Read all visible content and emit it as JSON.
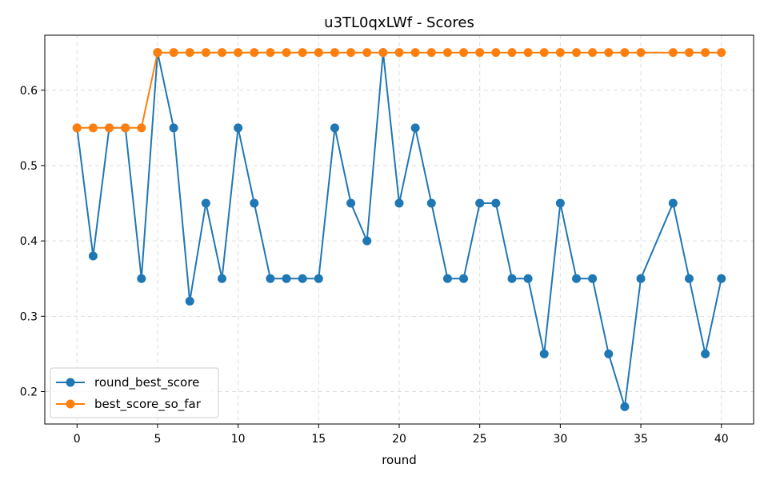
{
  "chart_data": {
    "type": "line",
    "title": "u3TL0qxLWf - Scores",
    "xlabel": "round",
    "ylabel": "",
    "xlim": [
      -2,
      42
    ],
    "ylim": [
      0.157,
      0.673
    ],
    "xticks": [
      0,
      5,
      10,
      15,
      20,
      25,
      30,
      35,
      40
    ],
    "yticks": [
      0.2,
      0.3,
      0.4,
      0.5,
      0.6
    ],
    "grid": true,
    "legend_position": "lower-left",
    "series": [
      {
        "name": "round_best_score",
        "color": "#1f77b4",
        "points": [
          [
            0,
            0.55
          ],
          [
            1,
            0.38
          ],
          [
            2,
            0.55
          ],
          [
            3,
            0.55
          ],
          [
            4,
            0.35
          ],
          [
            5,
            0.65
          ],
          [
            6,
            0.55
          ],
          [
            7,
            0.32
          ],
          [
            8,
            0.45
          ],
          [
            9,
            0.35
          ],
          [
            10,
            0.55
          ],
          [
            11,
            0.45
          ],
          [
            12,
            0.35
          ],
          [
            13,
            0.35
          ],
          [
            14,
            0.35
          ],
          [
            15,
            0.35
          ],
          [
            16,
            0.55
          ],
          [
            17,
            0.45
          ],
          [
            18,
            0.4
          ],
          [
            19,
            0.65
          ],
          [
            20,
            0.45
          ],
          [
            21,
            0.55
          ],
          [
            22,
            0.45
          ],
          [
            23,
            0.35
          ],
          [
            24,
            0.35
          ],
          [
            25,
            0.45
          ],
          [
            26,
            0.45
          ],
          [
            27,
            0.35
          ],
          [
            28,
            0.35
          ],
          [
            29,
            0.25
          ],
          [
            30,
            0.45
          ],
          [
            31,
            0.35
          ],
          [
            32,
            0.35
          ],
          [
            33,
            0.25
          ],
          [
            34,
            0.18
          ],
          [
            35,
            0.35
          ],
          [
            37,
            0.45
          ],
          [
            38,
            0.35
          ],
          [
            39,
            0.25
          ],
          [
            40,
            0.35
          ]
        ]
      },
      {
        "name": "best_score_so_far",
        "color": "#ff7f0e",
        "points": [
          [
            0,
            0.55
          ],
          [
            1,
            0.55
          ],
          [
            2,
            0.55
          ],
          [
            3,
            0.55
          ],
          [
            4,
            0.55
          ],
          [
            5,
            0.65
          ],
          [
            6,
            0.65
          ],
          [
            7,
            0.65
          ],
          [
            8,
            0.65
          ],
          [
            9,
            0.65
          ],
          [
            10,
            0.65
          ],
          [
            11,
            0.65
          ],
          [
            12,
            0.65
          ],
          [
            13,
            0.65
          ],
          [
            14,
            0.65
          ],
          [
            15,
            0.65
          ],
          [
            16,
            0.65
          ],
          [
            17,
            0.65
          ],
          [
            18,
            0.65
          ],
          [
            19,
            0.65
          ],
          [
            20,
            0.65
          ],
          [
            21,
            0.65
          ],
          [
            22,
            0.65
          ],
          [
            23,
            0.65
          ],
          [
            24,
            0.65
          ],
          [
            25,
            0.65
          ],
          [
            26,
            0.65
          ],
          [
            27,
            0.65
          ],
          [
            28,
            0.65
          ],
          [
            29,
            0.65
          ],
          [
            30,
            0.65
          ],
          [
            31,
            0.65
          ],
          [
            32,
            0.65
          ],
          [
            33,
            0.65
          ],
          [
            34,
            0.65
          ],
          [
            35,
            0.65
          ],
          [
            37,
            0.65
          ],
          [
            38,
            0.65
          ],
          [
            39,
            0.65
          ],
          [
            40,
            0.65
          ]
        ]
      }
    ]
  }
}
